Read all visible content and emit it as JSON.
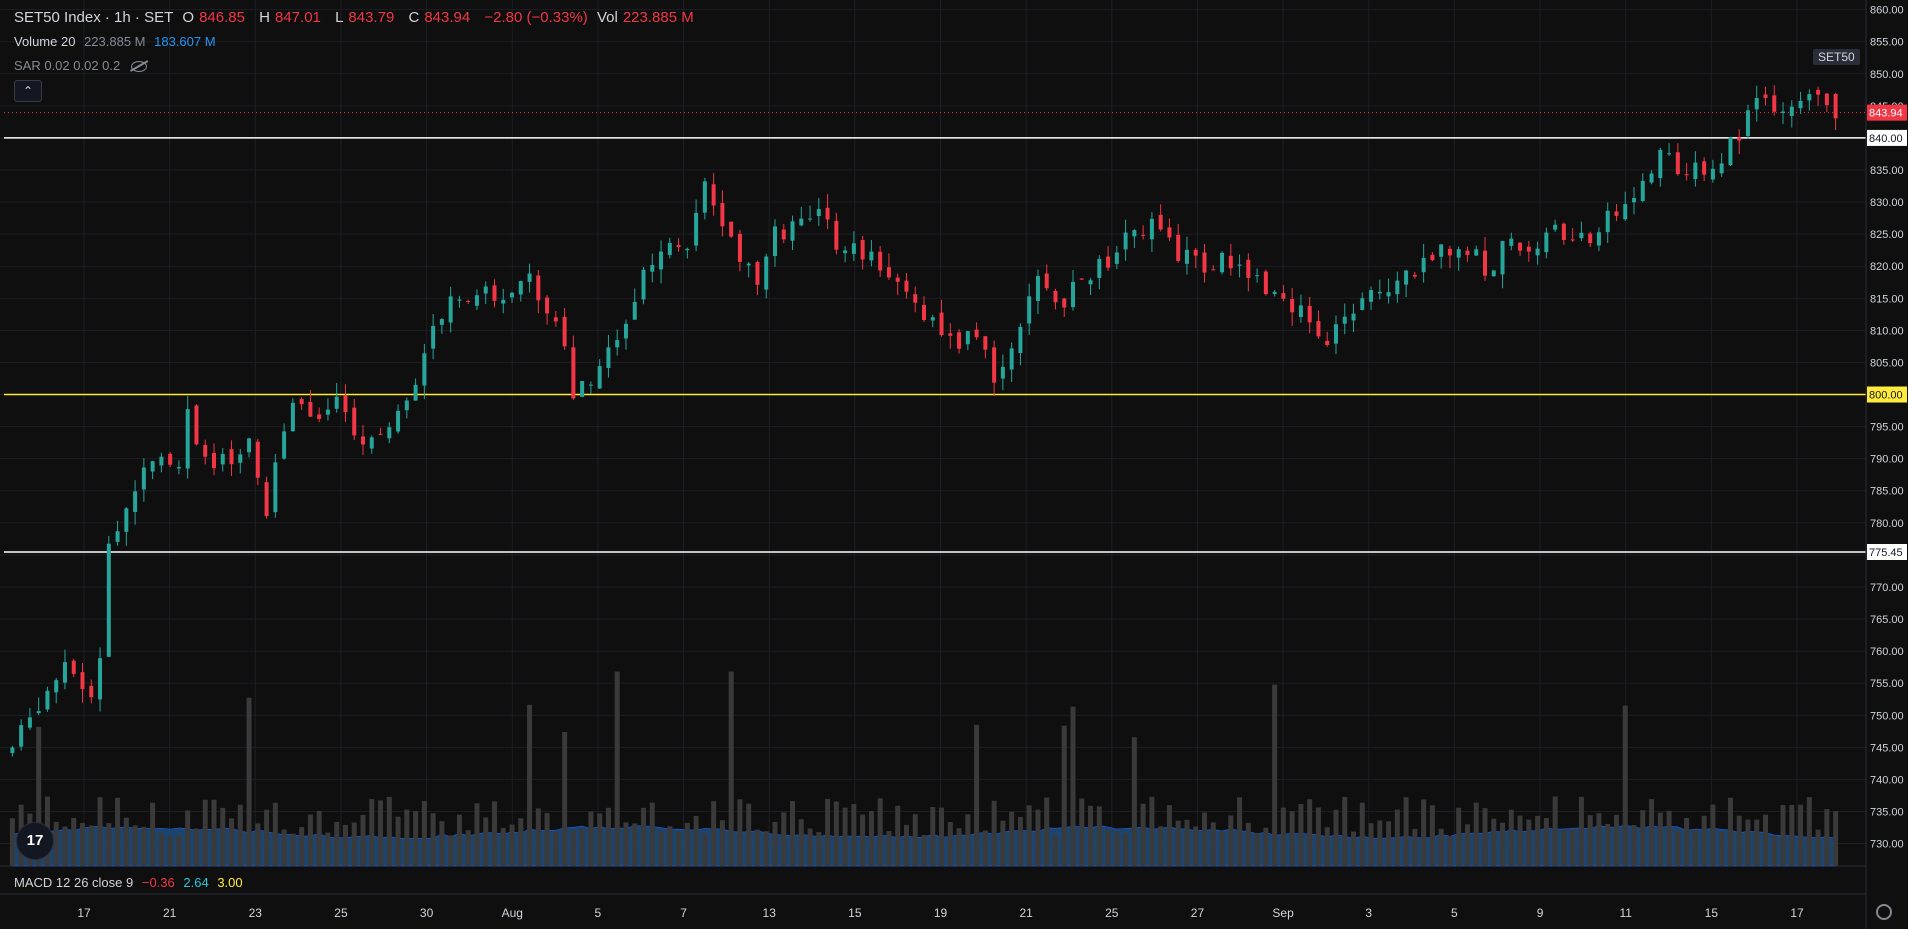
{
  "header": {
    "symbol": "SET50 Index · 1h · SET",
    "o_label": "O",
    "o_val": "846.85",
    "h_label": "H",
    "h_val": "847.01",
    "l_label": "L",
    "l_val": "843.79",
    "c_label": "C",
    "c_val": "843.94",
    "change": "−2.80 (−0.33%)",
    "vol_label": "Vol",
    "vol_val": "223.885 M"
  },
  "volume_indicator": {
    "name": "Volume 20",
    "val1": "223.885 M",
    "val2": "183.607 M"
  },
  "sar_indicator": {
    "name": "SAR 0.02 0.02 0.2"
  },
  "macd_indicator": {
    "name": "MACD 12 26 close 9",
    "v1": "−0.36",
    "v2": "2.64",
    "v3": "3.00"
  },
  "collapse_glyph": "⌃",
  "symbol_tag": "SET50",
  "logo_text": "17",
  "colors": {
    "up": "#26a69a",
    "down": "#f23645",
    "volume": "#3a3a3a",
    "volume_ma": "#2962ff",
    "yellow_line": "#ffeb3b",
    "white_line": "#ffffff"
  },
  "chart_data": {
    "type": "candlestick",
    "y_range": [
      726.5,
      861.5
    ],
    "y_ticks": [
      "860.00",
      "855.00",
      "850.00",
      "845.00",
      "840.00",
      "835.00",
      "830.00",
      "825.00",
      "820.00",
      "815.00",
      "810.00",
      "805.00",
      "800.00",
      "795.00",
      "790.00",
      "785.00",
      "780.00",
      "775.00",
      "770.00",
      "765.00",
      "760.00",
      "755.00",
      "750.00",
      "745.00",
      "740.00",
      "735.00",
      "730.00"
    ],
    "x_ticks": [
      "17",
      "21",
      "23",
      "25",
      "30",
      "Aug",
      "5",
      "7",
      "13",
      "15",
      "19",
      "21",
      "25",
      "27",
      "Sep",
      "3",
      "5",
      "9",
      "11",
      "15",
      "17"
    ],
    "horizontal_lines": [
      {
        "value": 840.0,
        "label": "840.00",
        "style": "white"
      },
      {
        "value": 800.0,
        "label": "800.00",
        "style": "yellow"
      },
      {
        "value": 775.45,
        "label": "775.45",
        "style": "white"
      }
    ],
    "last_price": {
      "value": 843.94,
      "label": "843.94"
    },
    "close_path": [
      [
        0,
        745
      ],
      [
        3,
        752
      ],
      [
        6,
        757
      ],
      [
        9,
        753
      ],
      [
        10,
        760
      ],
      [
        11,
        776
      ],
      [
        13,
        782
      ],
      [
        16,
        791
      ],
      [
        19,
        789
      ],
      [
        20,
        797
      ],
      [
        22,
        790
      ],
      [
        25,
        789
      ],
      [
        27,
        792
      ],
      [
        29,
        781
      ],
      [
        30,
        790
      ],
      [
        32,
        799
      ],
      [
        35,
        797
      ],
      [
        37,
        799
      ],
      [
        39,
        793
      ],
      [
        42,
        794
      ],
      [
        45,
        799
      ],
      [
        47,
        807
      ],
      [
        50,
        815
      ],
      [
        53,
        816
      ],
      [
        56,
        815
      ],
      [
        59,
        818
      ],
      [
        61,
        813
      ],
      [
        63,
        809
      ],
      [
        64,
        799
      ],
      [
        66,
        803
      ],
      [
        68,
        806
      ],
      [
        70,
        812
      ],
      [
        72,
        818
      ],
      [
        75,
        824
      ],
      [
        77,
        824
      ],
      [
        79,
        832
      ],
      [
        81,
        826
      ],
      [
        83,
        822
      ],
      [
        85,
        817
      ],
      [
        87,
        825
      ],
      [
        90,
        826
      ],
      [
        92,
        828
      ],
      [
        94,
        824
      ],
      [
        96,
        823
      ],
      [
        98,
        821
      ],
      [
        101,
        819
      ],
      [
        104,
        812
      ],
      [
        107,
        808
      ],
      [
        110,
        809
      ],
      [
        112,
        803
      ],
      [
        114,
        808
      ],
      [
        117,
        817
      ],
      [
        120,
        815
      ],
      [
        123,
        819
      ],
      [
        126,
        822
      ],
      [
        127,
        825
      ],
      [
        130,
        826
      ],
      [
        133,
        822
      ],
      [
        136,
        820
      ],
      [
        139,
        821
      ],
      [
        142,
        818
      ],
      [
        145,
        815
      ],
      [
        148,
        812
      ],
      [
        150,
        807
      ],
      [
        152,
        812
      ],
      [
        155,
        816
      ],
      [
        158,
        818
      ],
      [
        161,
        820
      ],
      [
        164,
        823
      ],
      [
        167,
        822
      ],
      [
        168,
        818
      ],
      [
        170,
        823
      ],
      [
        173,
        823
      ],
      [
        176,
        825
      ],
      [
        178,
        824
      ],
      [
        180,
        824
      ],
      [
        183,
        829
      ],
      [
        186,
        833
      ],
      [
        188,
        838
      ],
      [
        191,
        834
      ],
      [
        194,
        836
      ],
      [
        197,
        840
      ],
      [
        199,
        846
      ],
      [
        202,
        843
      ],
      [
        205,
        846
      ],
      [
        207,
        845
      ],
      [
        208,
        843.94
      ]
    ],
    "volume_bars_desc": "hourly volume bars with 20-period volume MA (blue area) along the bottom of the pane"
  }
}
